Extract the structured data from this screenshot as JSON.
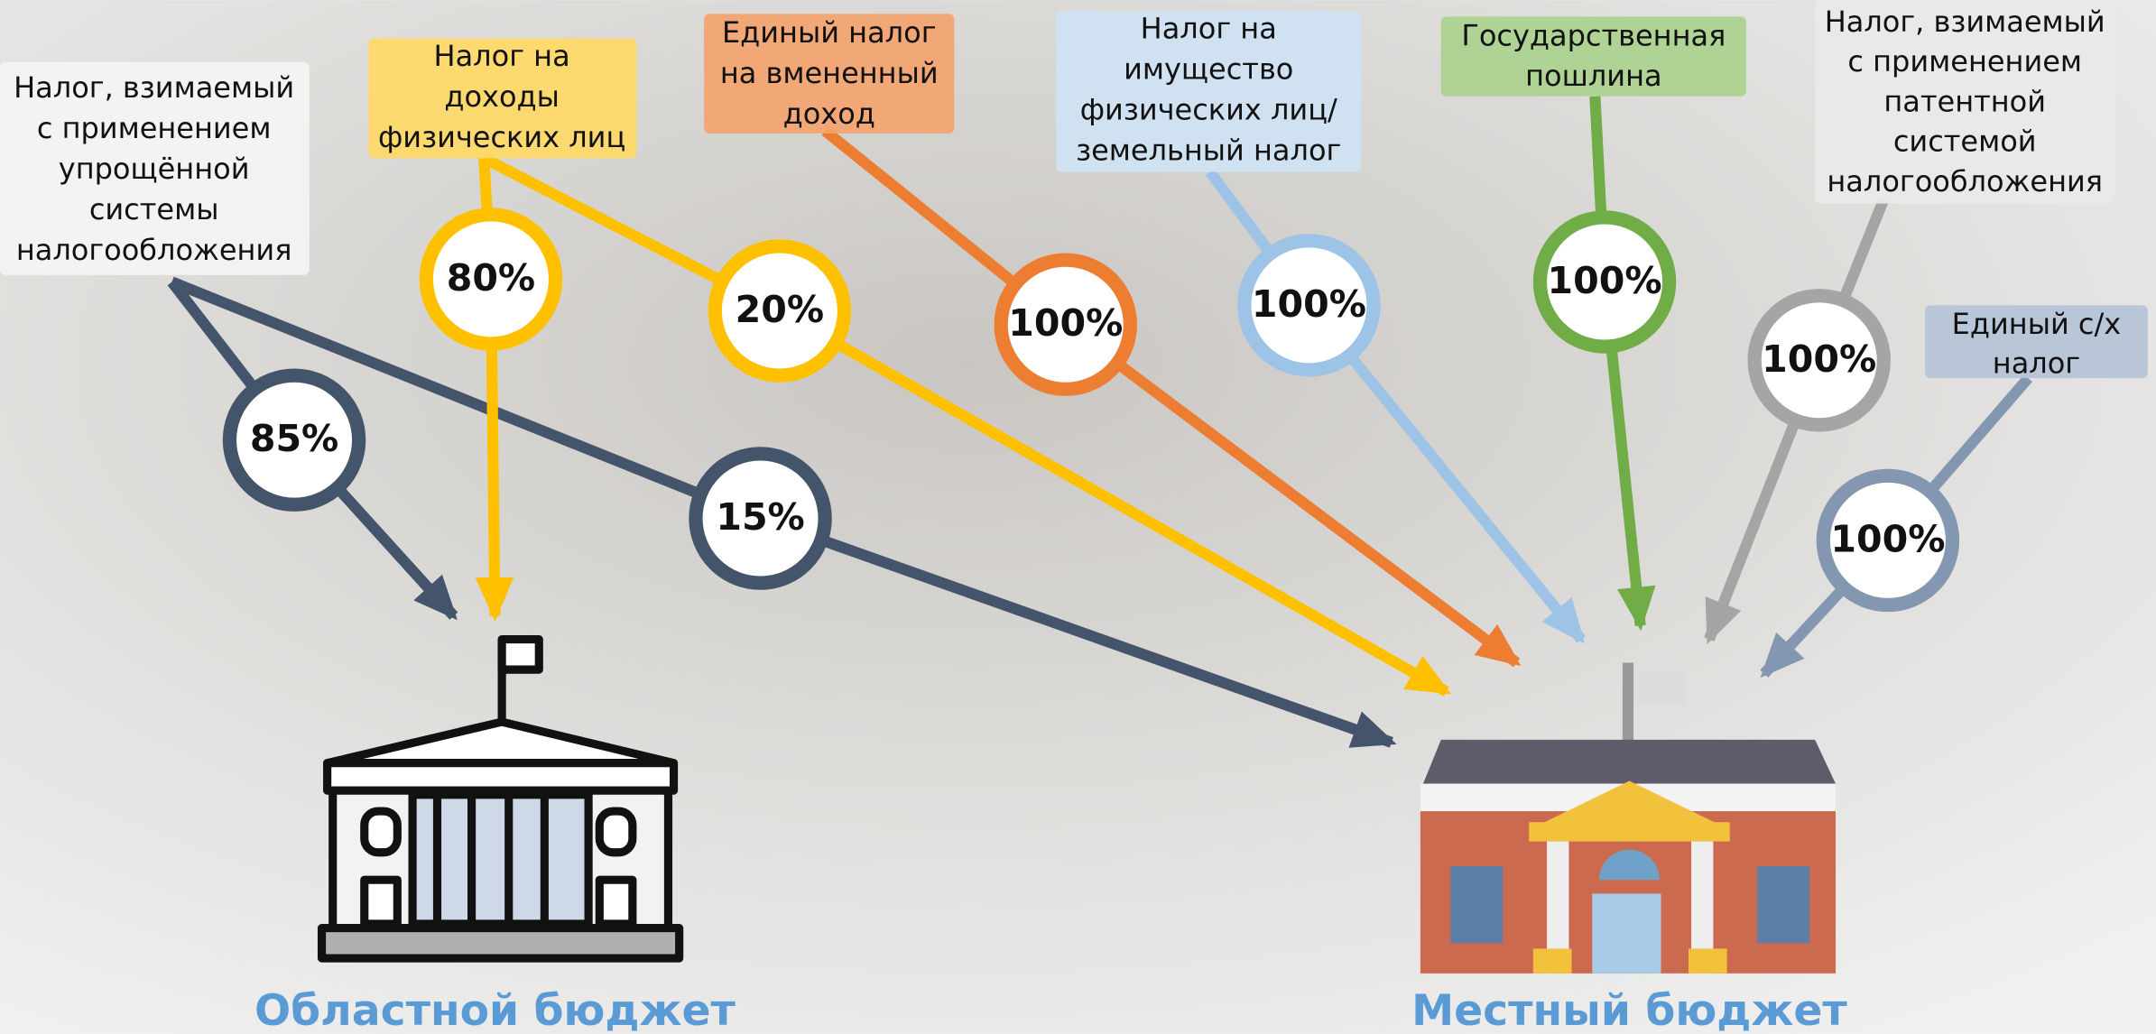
{
  "taxes": [
    {
      "lines": [
        "Налог, взимаемый",
        "с применением",
        "упрощённой",
        "системы",
        "налогообложения"
      ],
      "shares": [
        "85%",
        "15%"
      ]
    },
    {
      "lines": [
        "Налог на",
        "доходы",
        "физических лиц"
      ],
      "shares": [
        "80%",
        "20%"
      ]
    },
    {
      "lines": [
        "Единый налог",
        "на вмененный",
        "доход"
      ],
      "shares": [
        "100%"
      ]
    },
    {
      "lines": [
        "Налог на",
        "имущество",
        "физических лиц/",
        "земельный налог"
      ],
      "shares": [
        "100%"
      ]
    },
    {
      "lines": [
        "Государственная",
        "пошлина"
      ],
      "shares": [
        "100%"
      ]
    },
    {
      "lines": [
        "Налог, взимаемый",
        "с применением",
        "патентной",
        "системой",
        "налогообложения"
      ],
      "shares": [
        "100%"
      ]
    },
    {
      "lines": [
        "Единый с/х",
        "налог"
      ],
      "shares": [
        "100%"
      ]
    }
  ],
  "budgets": [
    "Областной бюджет",
    "Местный бюджет"
  ]
}
